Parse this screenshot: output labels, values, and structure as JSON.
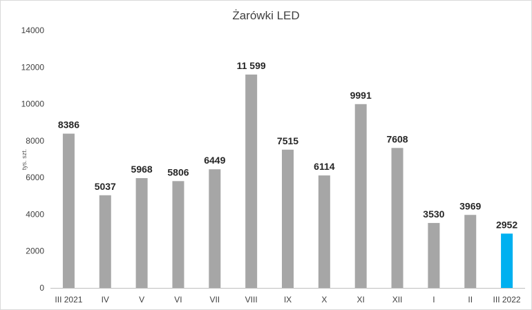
{
  "chart_data": {
    "type": "bar",
    "title": "Żarówki LED",
    "ylabel": "tys. szt.",
    "xlabel": "",
    "categories": [
      "III 2021",
      "IV",
      "V",
      "VI",
      "VII",
      "VIII",
      "IX",
      "X",
      "XI",
      "XII",
      "I",
      "II",
      "III 2022"
    ],
    "values": [
      8386,
      5037,
      5968,
      5806,
      6449,
      11599,
      7515,
      6114,
      9991,
      7608,
      3530,
      3969,
      2952
    ],
    "data_labels": [
      "8386",
      "5037",
      "5968",
      "5806",
      "6449",
      "11 599",
      "7515",
      "6114",
      "9991",
      "7608",
      "3530",
      "3969",
      "2952"
    ],
    "ylim": [
      0,
      14000
    ],
    "yticks": [
      0,
      2000,
      4000,
      6000,
      8000,
      10000,
      12000,
      14000
    ],
    "grid": false,
    "legend": "none",
    "colors": {
      "bar": "#a6a6a6",
      "highlight": "#00b0f0",
      "axis": "#bfbfbf",
      "text": "#404040"
    },
    "highlight_index": 12
  }
}
